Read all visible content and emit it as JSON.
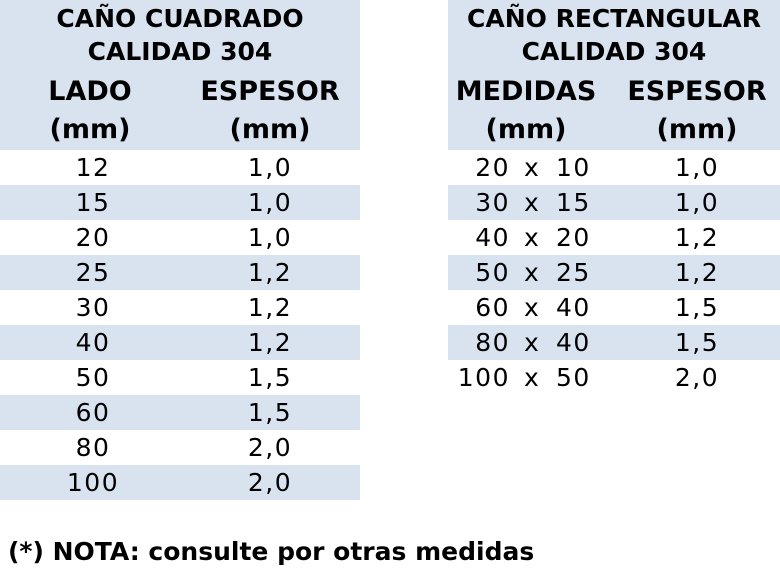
{
  "square": {
    "title_line1": "CAÑO CUADRADO",
    "title_line2": "CALIDAD 304",
    "col1_line1": "LADO",
    "col1_line2": "(mm)",
    "col2_line1": "ESPESOR",
    "col2_line2": "(mm)",
    "rows": [
      {
        "lado": "12",
        "espesor": "1,0"
      },
      {
        "lado": "15",
        "espesor": "1,0"
      },
      {
        "lado": "20",
        "espesor": "1,0"
      },
      {
        "lado": "25",
        "espesor": "1,2"
      },
      {
        "lado": "30",
        "espesor": "1,2"
      },
      {
        "lado": "40",
        "espesor": "1,2"
      },
      {
        "lado": "50",
        "espesor": "1,5"
      },
      {
        "lado": "60",
        "espesor": "1,5"
      },
      {
        "lado": "80",
        "espesor": "2,0"
      },
      {
        "lado": "100",
        "espesor": "2,0"
      }
    ]
  },
  "rectangular": {
    "title_line1": "CAÑO RECTANGULAR",
    "title_line2": "CALIDAD 304",
    "col1_line1": "MEDIDAS",
    "col1_line2": "(mm)",
    "col2_line1": "ESPESOR",
    "col2_line2": "(mm)",
    "rows": [
      {
        "a": "20",
        "x": "x",
        "b": "10",
        "espesor": "1,0"
      },
      {
        "a": "30",
        "x": "x",
        "b": "15",
        "espesor": "1,0"
      },
      {
        "a": "40",
        "x": "x",
        "b": "20",
        "espesor": "1,2"
      },
      {
        "a": "50",
        "x": "x",
        "b": "25",
        "espesor": "1,2"
      },
      {
        "a": "60",
        "x": "x",
        "b": "40",
        "espesor": "1,5"
      },
      {
        "a": "80",
        "x": "x",
        "b": "40",
        "espesor": "1,5"
      },
      {
        "a": "100",
        "x": "x",
        "b": "50",
        "espesor": "2,0"
      }
    ]
  },
  "note": "(*) NOTA: consulte por otras medidas",
  "colors": {
    "band": "#d9e3f0",
    "text": "#000000",
    "background": "#ffffff"
  }
}
